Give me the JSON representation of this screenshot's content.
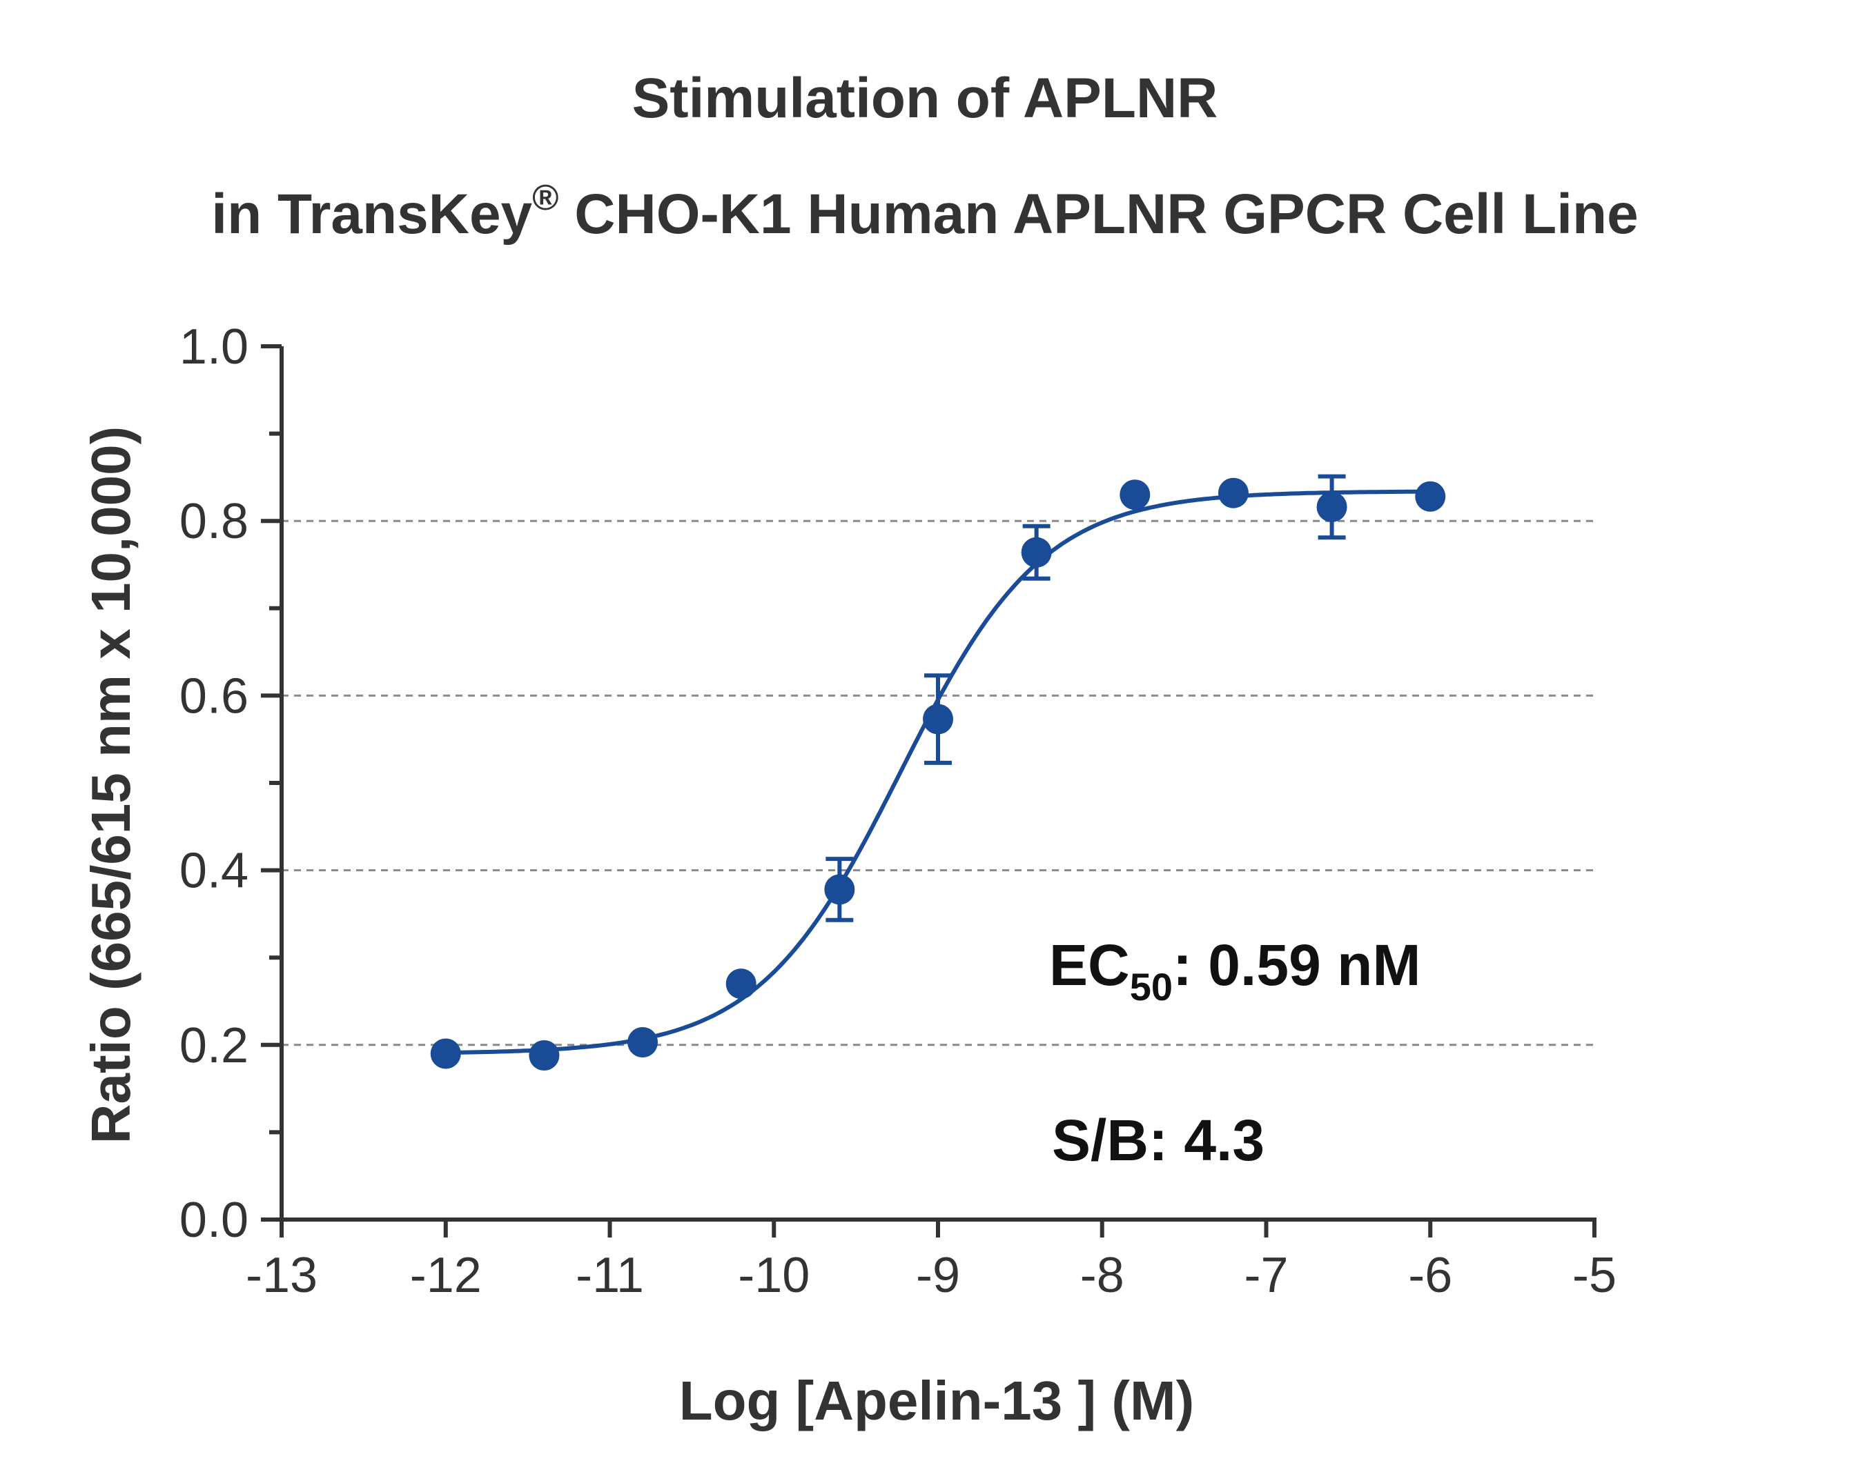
{
  "chart_data": {
    "type": "scatter",
    "title_line1": "Stimulation of  APLNR",
    "title_line2_prefix": "in TransKey",
    "title_line2_sup": "®",
    "title_line2_suffix": " CHO-K1 Human APLNR GPCR Cell Line",
    "xlabel": "Log [Apelin-13 ]  (M)",
    "ylabel": "Ratio (665/615 nm x 10,000)",
    "xlim": [
      -13,
      -5
    ],
    "ylim": [
      0.0,
      1.0
    ],
    "x_ticks": [
      -13,
      -12,
      -11,
      -10,
      -9,
      -8,
      -7,
      -6,
      -5
    ],
    "x_tick_labels": [
      "-13",
      "-12",
      "-11",
      "-10",
      "-9",
      "-8",
      "-7",
      "-6",
      "-5"
    ],
    "y_ticks": [
      0.0,
      0.2,
      0.4,
      0.6,
      0.8,
      1.0
    ],
    "y_tick_labels": [
      "0.0",
      "0.2",
      "0.4",
      "0.6",
      "0.8",
      "1.0"
    ],
    "y_gridlines": [
      0.2,
      0.4,
      0.6,
      0.8
    ],
    "grid": "dashed horizontal",
    "color": "#1a4b96",
    "series": [
      {
        "x": [
          -12.0,
          -11.4,
          -10.8,
          -10.2,
          -9.6,
          -9.0,
          -8.4,
          -7.8,
          -7.2,
          -6.6,
          -6.0
        ],
        "y": [
          0.19,
          0.188,
          0.203,
          0.27,
          0.378,
          0.573,
          0.764,
          0.83,
          0.832,
          0.816,
          0.828
        ],
        "error": [
          0.0,
          0.0,
          0.0,
          0.0,
          0.035,
          0.05,
          0.03,
          0.0,
          0.0,
          0.035,
          0.0
        ]
      }
    ],
    "fit": {
      "model": "four-parameter logistic",
      "bottom": 0.19,
      "top": 0.834,
      "log_ec50": -9.23,
      "hill_slope": 1.0
    },
    "annotations": {
      "ec50_prefix": "EC",
      "ec50_sub": "50",
      "ec50_suffix": ": 0.59 nM",
      "sb": "S/B: 4.3"
    }
  }
}
